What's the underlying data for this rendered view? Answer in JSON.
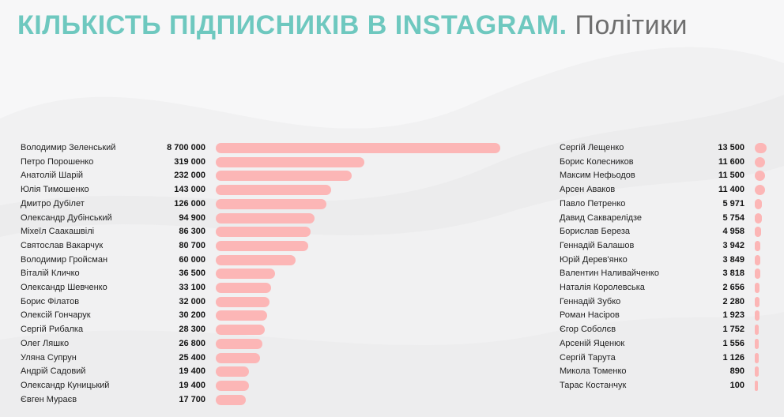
{
  "header": {
    "title_main": "КІЛЬКІСТЬ ПІДПИСНИКІВ В INSTAGRAM.",
    "title_sub": "Політики"
  },
  "colors": {
    "title_accent": "#6ec8bf",
    "bar": "#fcb6b6",
    "background": "#f1f1f2"
  },
  "chart_data": [
    {
      "type": "bar",
      "orientation": "horizontal",
      "categories": [
        "Володимир Зеленський",
        "Петро Порошенко",
        "Анатолій Шарій",
        "Юлія Тимошенко",
        "Дмитро Дубілет",
        "Олександр Дубінський",
        "Міхеїл Саакашвілі",
        "Святослав Вакарчук",
        "Володимир Гройсман",
        "Віталій Кличко",
        "Олександр Шевченко",
        "Борис Філатов",
        "Олексій Гончарук",
        "Сергій Рибалка",
        "Олег Ляшко",
        "Уляна Супрун",
        "Андрій Садовий",
        "Олександр Куницький",
        "Євген Мураєв"
      ],
      "values": [
        8700000,
        319000,
        232000,
        143000,
        126000,
        94900,
        86300,
        80700,
        60000,
        36500,
        33100,
        32000,
        30200,
        28300,
        26800,
        25400,
        19400,
        19400,
        17700
      ],
      "labels": [
        "8 700 000",
        "319 000",
        "232 000",
        "143 000",
        "126 000",
        "94 900",
        "86 300",
        "80 700",
        "60 000",
        "36 500",
        "33 100",
        "32 000",
        "30 200",
        "28 300",
        "26 800",
        "25 400",
        "19 400",
        "19 400",
        "17 700"
      ],
      "scale": "log",
      "grid": false
    },
    {
      "type": "bar",
      "orientation": "horizontal",
      "categories": [
        "Сергій Лещенко",
        "Борис Колесников",
        "Максим Нефьодов",
        "Арсен Аваков",
        "Павло Петренко",
        "Давид Сакварелідзе",
        "Борислав Береза",
        "Геннадій Балашов",
        "Юрій Дерев'янко",
        "Валентин Наливайченко",
        "Наталія Королевська",
        "Геннадій Зубко",
        "Роман Насіров",
        "Єгор Соболєв",
        "Арсеній Яценюк",
        "Сергій Тарута",
        "Микола Томенко",
        "Тарас Костанчук"
      ],
      "values": [
        13500,
        11600,
        11500,
        11400,
        5971,
        5754,
        4958,
        3942,
        3849,
        3818,
        2656,
        2280,
        1923,
        1752,
        1556,
        1126,
        890,
        100
      ],
      "labels": [
        "13 500",
        "11 600",
        "11 500",
        "11 400",
        "5 971",
        "5 754",
        "4 958",
        "3 942",
        "3 849",
        "3 818",
        "2 656",
        "2 280",
        "1 923",
        "1 752",
        "1 556",
        "1 126",
        "890",
        "100"
      ],
      "scale": "linear",
      "grid": false
    }
  ]
}
